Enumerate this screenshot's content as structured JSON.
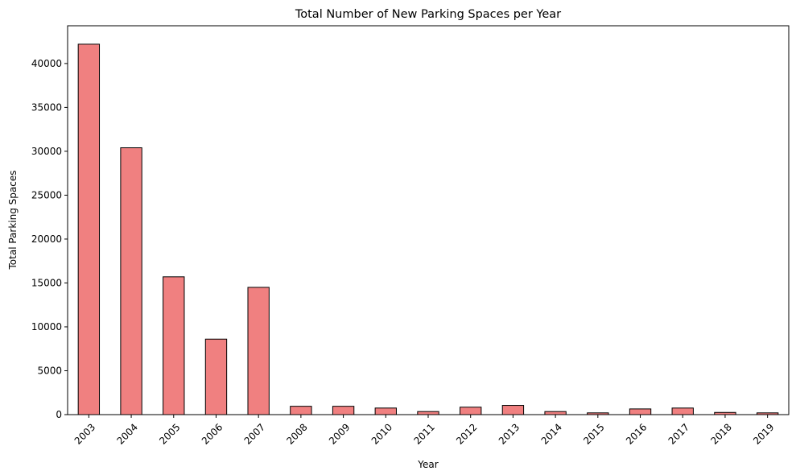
{
  "chart_data": {
    "type": "bar",
    "title": "Total Number of New Parking Spaces per Year",
    "xlabel": "Year",
    "ylabel": "Total Parking Spaces",
    "categories": [
      "2003",
      "2004",
      "2005",
      "2006",
      "2007",
      "2008",
      "2009",
      "2010",
      "2011",
      "2012",
      "2013",
      "2014",
      "2015",
      "2016",
      "2017",
      "2018",
      "2019"
    ],
    "values": [
      42200,
      30400,
      15700,
      8600,
      14500,
      950,
      950,
      750,
      350,
      850,
      1050,
      350,
      200,
      650,
      750,
      250,
      200
    ],
    "ylim": [
      0,
      44300
    ],
    "yticks": [
      0,
      5000,
      10000,
      15000,
      20000,
      25000,
      30000,
      35000,
      40000
    ],
    "bar_color": "#f08080",
    "edge_color": "#000000",
    "grid": false,
    "legend": false
  }
}
